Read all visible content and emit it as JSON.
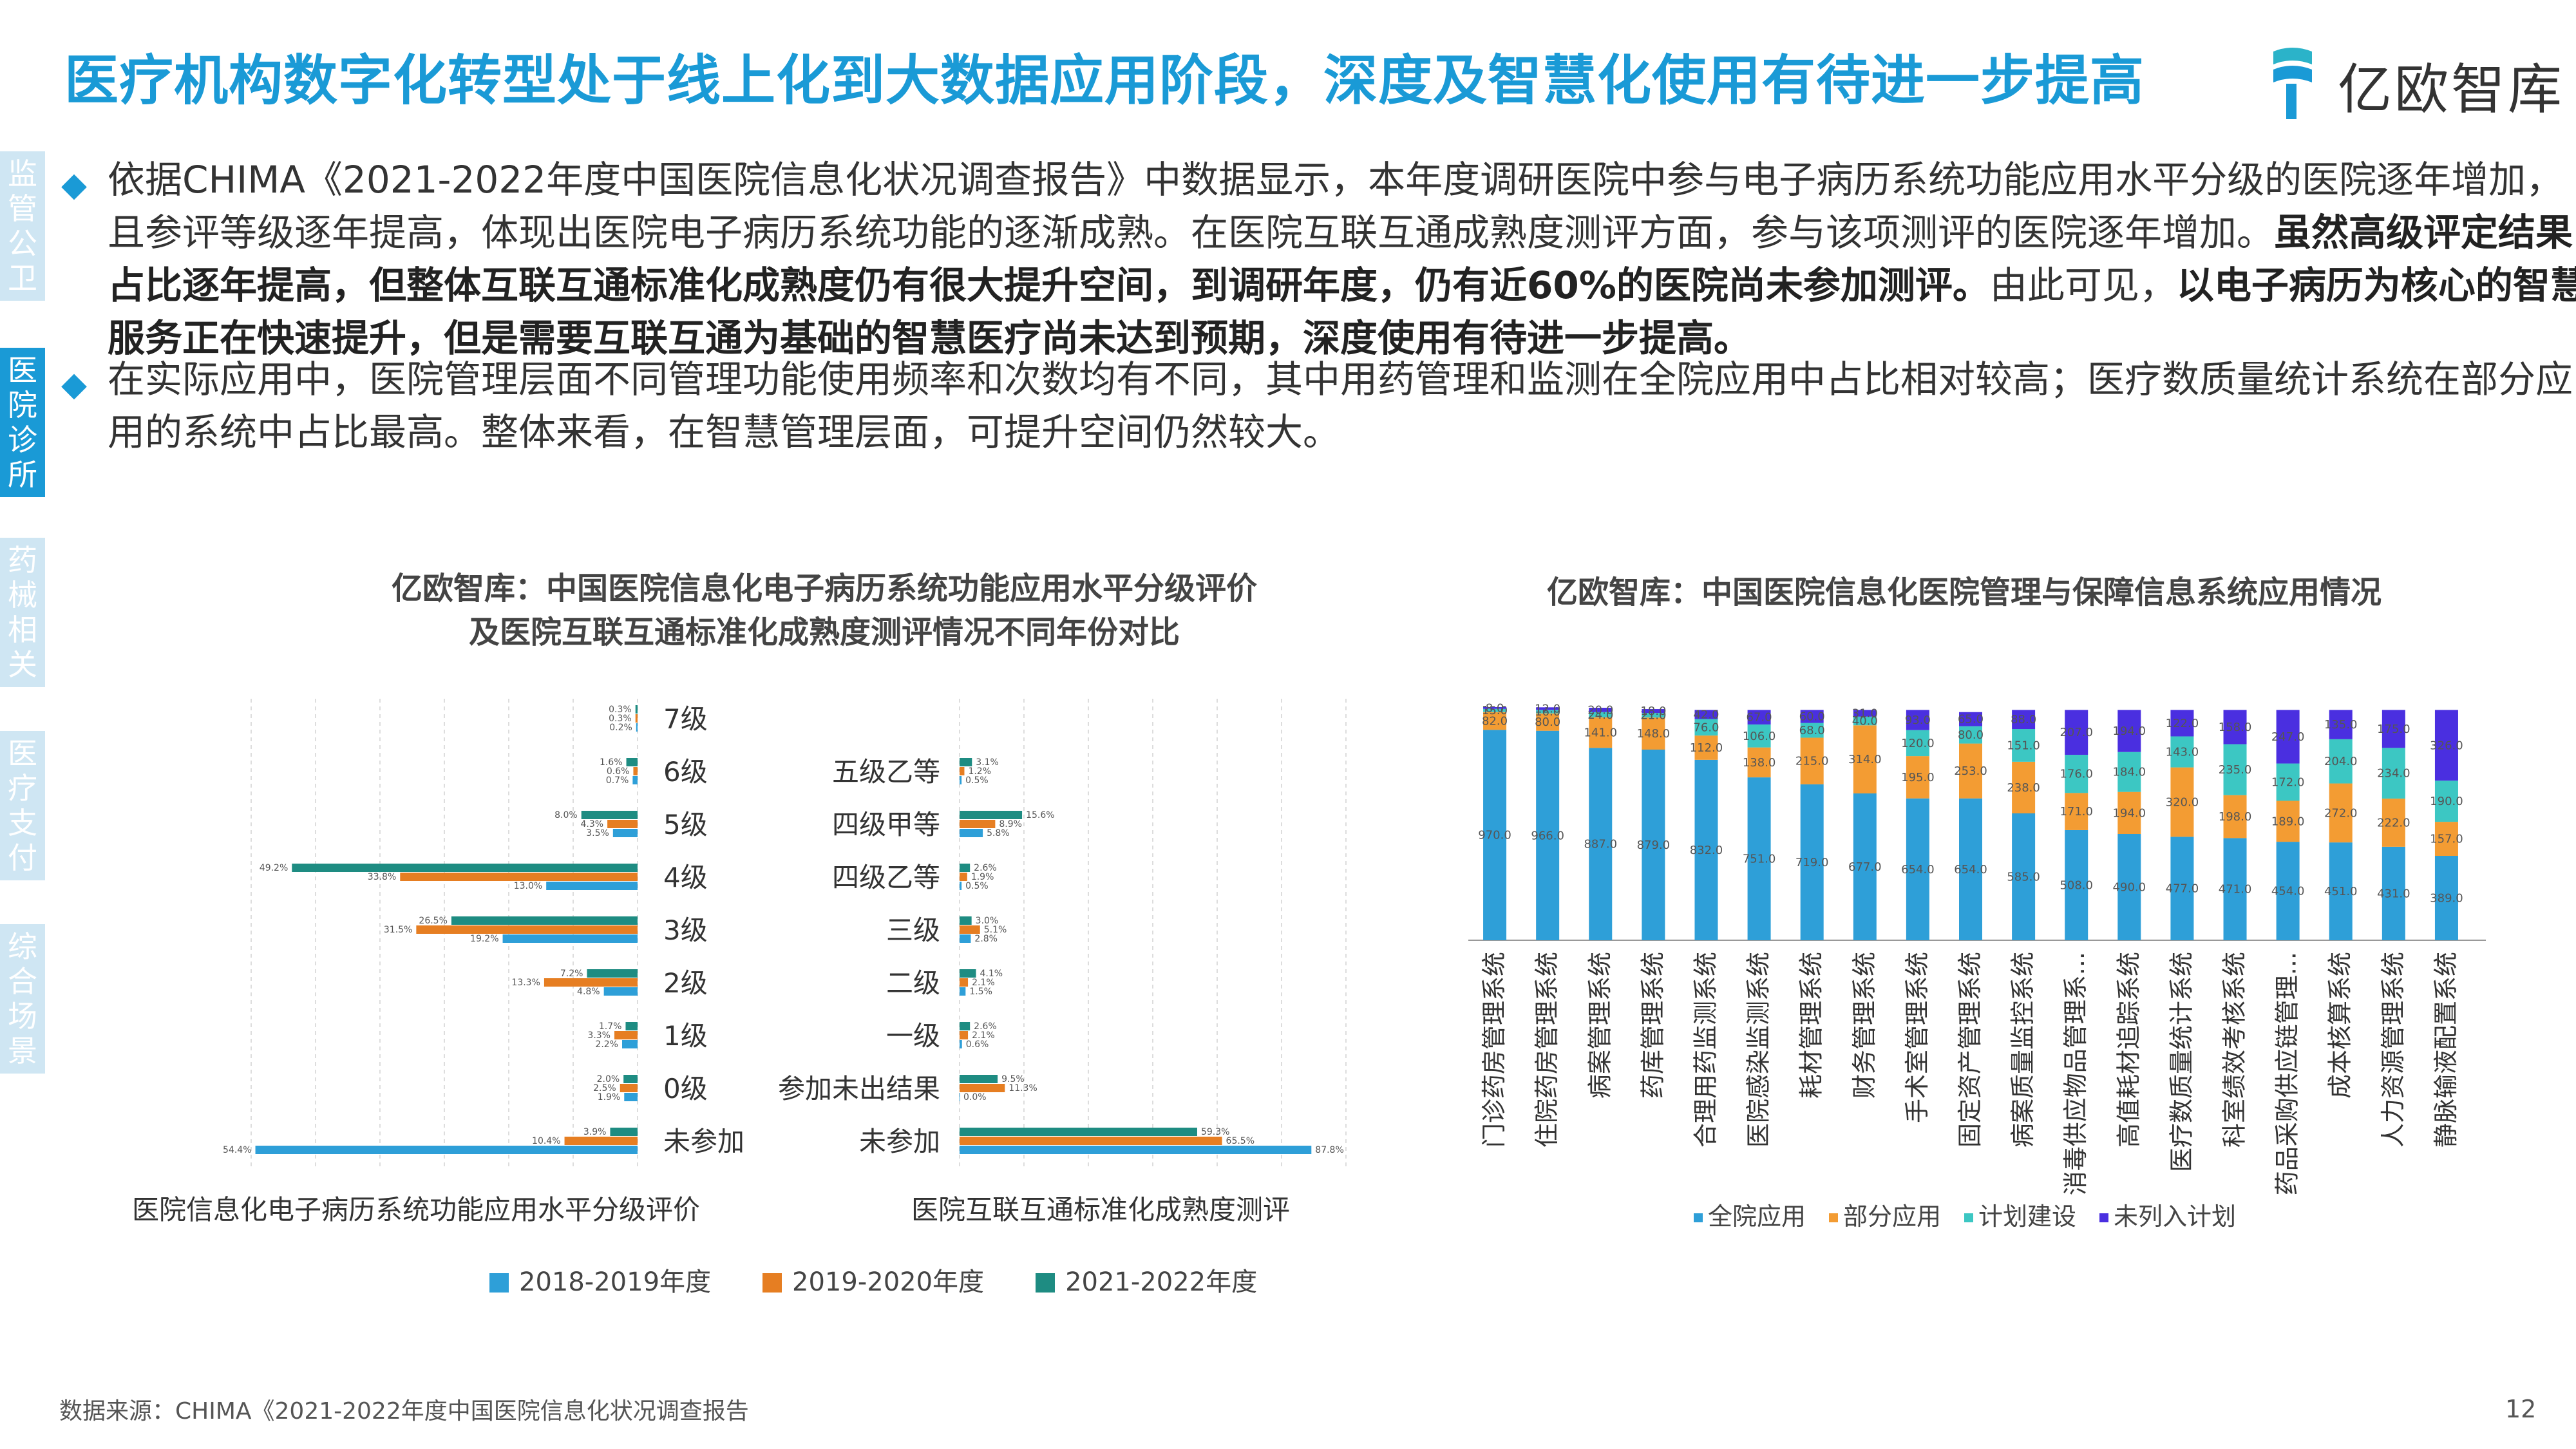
{
  "title": "医疗机构数字化转型处于线上化到大数据应用阶段，深度及智慧化使用有待进一步提高",
  "logo_text": "亿欧智库",
  "sidebar": [
    "监管公卫",
    "医院诊所",
    "药械相关",
    "医疗支付",
    "综合场景"
  ],
  "sidebar_active": 1,
  "bullets": [
    {
      "part1": "依据CHIMA《2021-2022年度中国医院信息化状况调查报告》中数据显示，本年度调研医院中参与电子病历系统功能应用水平分级的医院逐年增加，且参评等级逐年提高，体现出医院电子病历系统功能的逐渐成熟。在医院互联互通成熟度测评方面，参与该项测评的医院逐年增加。",
      "bold1": "虽然高级评定结果占比逐年提高，但整体互联互通标准化成熟度仍有很大提升空间，到调研年度，仍有近60%的医院尚未参加测评。",
      "part2": "由此可见，",
      "bold2": "以电子病历为核心的智慧服务正在快速提升，但是需要互联互通为基础的智慧医疗尚未达到预期，深度使用有待进一步提高。"
    },
    {
      "part1": "在实际应用中，医院管理层面不同管理功能使用频率和次数均有不同，其中用药管理和监测在全院应用中占比相对较高；医疗数质量统计系统在部分应用的系统中占比最高。整体来看，在智慧管理层面，可提升空间仍然较大。"
    }
  ],
  "footer": "数据来源：CHIMA《2021-2022年度中国医院信息化状况调查报告",
  "page_number": "12",
  "chart_data": [
    {
      "type": "bar",
      "orientation": "horizontal",
      "title_line1": "亿欧智库：中国医院信息化电子病历系统功能应用水平分级评价",
      "title_line2": "及医院互联互通标准化成熟度测评情况不同年份对比",
      "subtitle": "医院信息化电子病历系统功能应用水平分级评价",
      "categories": [
        "7级",
        "6级",
        "5级",
        "4级",
        "3级",
        "2级",
        "1级",
        "0级",
        "未参加"
      ],
      "series": [
        {
          "name": "2018-2019年度",
          "color": "#2e9fd8",
          "values": [
            0.2,
            0.7,
            3.5,
            13.0,
            19.2,
            4.8,
            2.2,
            1.9,
            54.4
          ]
        },
        {
          "name": "2019-2020年度",
          "color": "#e67e22",
          "values": [
            0.3,
            0.6,
            4.3,
            33.8,
            31.5,
            13.3,
            3.3,
            2.5,
            10.4
          ]
        },
        {
          "name": "2021-2022年度",
          "color": "#1e8c82",
          "values": [
            0.3,
            1.6,
            8.0,
            49.2,
            26.5,
            7.2,
            1.7,
            2.0,
            3.9
          ]
        }
      ],
      "xlim": [
        0,
        55
      ],
      "direction": "right-to-left"
    },
    {
      "type": "bar",
      "orientation": "horizontal",
      "subtitle": "医院互联互通标准化成熟度测评",
      "categories": [
        "五级乙等",
        "四级甲等",
        "四级乙等",
        "三级",
        "二级",
        "一级",
        "参加未出结果",
        "未参加"
      ],
      "series": [
        {
          "name": "2018-2019年度",
          "color": "#2e9fd8",
          "values": [
            0.5,
            5.8,
            0.5,
            2.8,
            1.5,
            0.6,
            0.0,
            87.8
          ]
        },
        {
          "name": "2019-2020年度",
          "color": "#e67e22",
          "values": [
            1.2,
            8.9,
            1.9,
            5.1,
            2.1,
            2.1,
            11.3,
            65.5
          ]
        },
        {
          "name": "2021-2022年度",
          "color": "#1e8c82",
          "values": [
            3.1,
            15.6,
            2.6,
            3.0,
            4.1,
            2.6,
            9.5,
            59.3
          ]
        }
      ],
      "xlim": [
        0,
        90
      ]
    },
    {
      "type": "bar",
      "stacked": true,
      "title": "亿欧智库：中国医院信息化医院管理与保障信息系统应用情况",
      "categories": [
        "门诊药房管理系统",
        "住院药房管理系统",
        "病案管理系统",
        "药库管理系统",
        "合理用药监测系统",
        "医院感染监测系统",
        "耗材管理系统",
        "财务管理系统",
        "手术室管理系统",
        "固定资产管理系统",
        "病案质量监控系统",
        "消毒供应物品管理系...",
        "高值耗材追踪系统",
        "医疗数质量统计系统",
        "科室绩效考核系统",
        "药品采购供应链管理...",
        "成本核算系统",
        "人力资源管理系统",
        "静脉输液配置系统"
      ],
      "series": [
        {
          "name": "全院应用",
          "color": "#2e9fd8",
          "values": [
            970,
            966,
            887,
            879,
            832,
            751,
            719,
            677,
            654,
            654,
            585,
            508,
            490,
            477,
            471,
            454,
            451,
            431,
            389
          ]
        },
        {
          "name": "部分应用",
          "color": "#f39c33",
          "values": [
            82,
            80,
            141,
            148,
            112,
            138,
            215,
            314,
            195,
            253,
            238,
            171,
            194,
            320,
            198,
            189,
            272,
            222,
            157
          ]
        },
        {
          "name": "计划建设",
          "color": "#3cc7c3",
          "values": [
            15,
            16,
            24,
            21,
            76,
            106,
            68,
            40,
            120,
            80,
            151,
            176,
            184,
            143,
            235,
            172,
            204,
            234,
            190
          ]
        },
        {
          "name": "未列入计划",
          "color": "#4a2fe0",
          "values": [
            8,
            12,
            20,
            18,
            42,
            67,
            60,
            31,
            93,
            65,
            88,
            207,
            194,
            122,
            158,
            247,
            135,
            175,
            326
          ]
        }
      ],
      "value_labels": [
        [
          "970.0",
          "966.0",
          "887.0",
          "879.0",
          "832.0",
          "751.0",
          "719.0",
          "677.0",
          "654.0",
          "654.0",
          "585.0",
          "508.0",
          "490.0",
          "477.0",
          "471.0",
          "454.0",
          "451.0",
          "431.0",
          "389.0"
        ],
        [
          "82.0",
          "80.0",
          "141.0",
          "148.0",
          "112.0",
          "138.0",
          "215.0",
          "314.0",
          "195.0",
          "253.0",
          "238.0",
          "171.0",
          "194.0",
          "320.0",
          "198.0",
          "189.0",
          "272.0",
          "222.0",
          "157.0"
        ],
        [
          "15.0",
          "16.0",
          "24.0",
          "21.0",
          "76.0",
          "106.0",
          "68.0",
          "40.0",
          "120.0",
          "80.0",
          "151.0",
          "176.0",
          "184.0",
          "143.0",
          "235.0",
          "172.0",
          "204.0",
          "234.0",
          "190.0"
        ],
        [
          "8.0",
          "12.0",
          "20.0",
          "18.0",
          "42.0",
          "67.0",
          "60.0",
          "31.0",
          "93.0",
          "65.0",
          "88.0",
          "207.0",
          "194.0",
          "122.0",
          "158.0",
          "247.0",
          "135.0",
          "175.0",
          "326.0"
        ]
      ]
    }
  ]
}
